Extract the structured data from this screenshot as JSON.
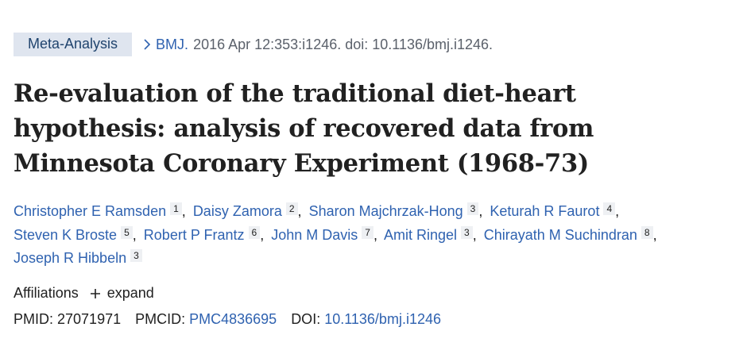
{
  "header": {
    "badge": "Meta-Analysis",
    "journal": "BMJ.",
    "citation": "2016 Apr 12:353:i1246. doi: 10.1136/bmj.i1246."
  },
  "title": "Re-evaluation of the traditional diet-heart hypothesis: analysis of recovered data from Minnesota Coronary Experiment (1968-73)",
  "authors": [
    {
      "name": "Christopher E Ramsden",
      "aff": "1"
    },
    {
      "name": "Daisy Zamora",
      "aff": "2"
    },
    {
      "name": "Sharon Majchrzak-Hong",
      "aff": "3"
    },
    {
      "name": "Keturah R Faurot",
      "aff": "4"
    },
    {
      "name": "Steven K Broste",
      "aff": "5"
    },
    {
      "name": "Robert P Frantz",
      "aff": "6"
    },
    {
      "name": "John M Davis",
      "aff": "7"
    },
    {
      "name": "Amit Ringel",
      "aff": "3"
    },
    {
      "name": "Chirayath M Suchindran",
      "aff": "8"
    },
    {
      "name": "Joseph R Hibbeln",
      "aff": "3"
    }
  ],
  "author_separator": ",",
  "affiliations": {
    "label": "Affiliations",
    "toggle": "expand"
  },
  "identifiers": [
    {
      "label": "PMID:",
      "value": "27071971"
    },
    {
      "label": "PMCID:",
      "value": "PMC4836695"
    },
    {
      "label": "DOI:",
      "value": "10.1136/bmj.i1246"
    }
  ]
}
